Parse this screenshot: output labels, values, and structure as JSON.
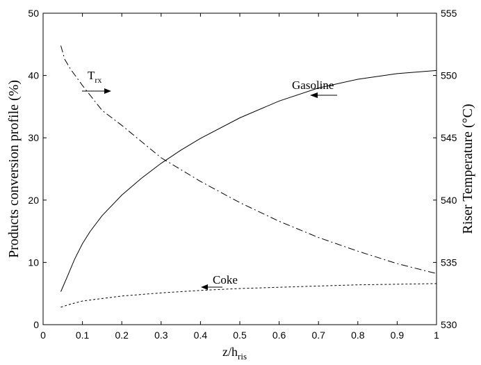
{
  "chart_data": {
    "type": "line",
    "title": "",
    "x_axis": {
      "label_main": "z/h",
      "label_sub": "ris",
      "range": [
        0,
        1
      ],
      "ticks": [
        "0",
        "0.1",
        "0.2",
        "0.3",
        "0.4",
        "0.5",
        "0.6",
        "0.7",
        "0.8",
        "0.9",
        "1"
      ]
    },
    "y_left": {
      "label": "Products conversion profile (%)",
      "range": [
        0,
        50
      ],
      "ticks": [
        "0",
        "10",
        "20",
        "30",
        "40",
        "50"
      ]
    },
    "y_right": {
      "label": "Riser Temperature (°C)",
      "range": [
        530,
        555
      ],
      "ticks": [
        "530",
        "535",
        "540",
        "545",
        "550",
        "555"
      ]
    },
    "grid": false,
    "series": [
      {
        "name": "Gasoline",
        "axis": "left",
        "style": "solid",
        "x": [
          0.045,
          0.06,
          0.08,
          0.1,
          0.12,
          0.15,
          0.2,
          0.25,
          0.3,
          0.35,
          0.4,
          0.5,
          0.6,
          0.7,
          0.8,
          0.9,
          1.0
        ],
        "y": [
          5.3,
          7.5,
          10.5,
          13.0,
          15.0,
          17.5,
          20.8,
          23.5,
          25.9,
          28.0,
          29.9,
          33.2,
          35.9,
          38.0,
          39.4,
          40.3,
          40.8
        ]
      },
      {
        "name": "Coke",
        "axis": "left",
        "style": "dashed",
        "x": [
          0.045,
          0.07,
          0.1,
          0.15,
          0.2,
          0.3,
          0.4,
          0.5,
          0.6,
          0.7,
          0.8,
          0.9,
          1.0
        ],
        "y": [
          2.8,
          3.3,
          3.8,
          4.2,
          4.6,
          5.1,
          5.5,
          5.8,
          6.0,
          6.2,
          6.4,
          6.5,
          6.6
        ]
      },
      {
        "name": "T",
        "name_sub": "rx",
        "axis": "right",
        "style": "dashdot",
        "x": [
          0.045,
          0.055,
          0.07,
          0.1,
          0.15,
          0.2,
          0.3,
          0.4,
          0.5,
          0.6,
          0.7,
          0.8,
          0.9,
          1.0
        ],
        "y": [
          552.4,
          551.3,
          550.5,
          549.2,
          547.2,
          546.0,
          543.4,
          541.5,
          539.8,
          538.3,
          537.0,
          535.9,
          534.9,
          534.1
        ]
      }
    ]
  }
}
